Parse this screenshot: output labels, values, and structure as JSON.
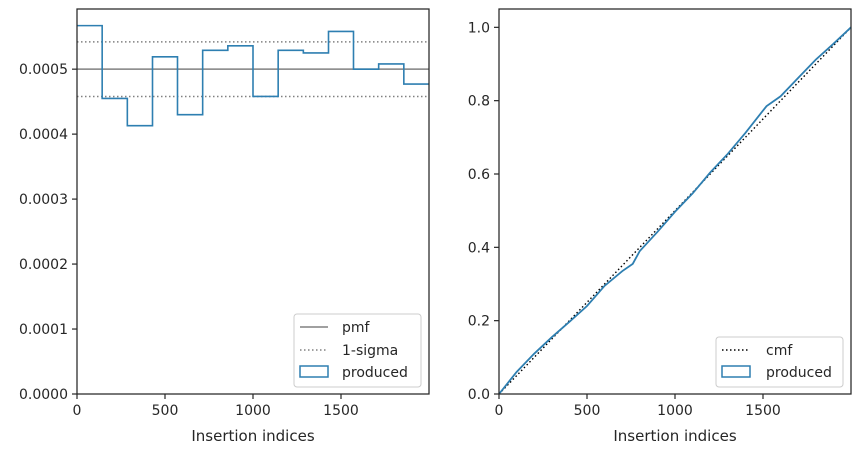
{
  "chart_data": [
    {
      "type": "histogram",
      "xlabel": "Insertion indices",
      "ylabel": "",
      "xlim": [
        0,
        2000
      ],
      "ylim": [
        0,
        0.0005926
      ],
      "xticks": [
        0,
        500,
        1000,
        1500
      ],
      "xtick_labels": [
        "0",
        "500",
        "1000",
        "1500"
      ],
      "yticks": [
        0,
        0.0001,
        0.0002,
        0.0003,
        0.0004,
        0.0005
      ],
      "ytick_labels": [
        "0.0000",
        "0.0001",
        "0.0002",
        "0.0003",
        "0.0004",
        "0.0005"
      ],
      "bin_edges": [
        0,
        143,
        286,
        429,
        571,
        714,
        857,
        1000,
        1143,
        1286,
        1429,
        1571,
        1714,
        1857,
        2000
      ],
      "series": [
        {
          "name": "produced",
          "style": "step",
          "color": "#2e7fb1",
          "values": [
            0.000567,
            0.000455,
            0.000413,
            0.000519,
            0.00043,
            0.000529,
            0.000536,
            0.000458,
            0.000529,
            0.000525,
            0.000558,
            0.0005,
            0.000508,
            0.000477
          ]
        }
      ],
      "reference_lines": [
        {
          "name": "pmf",
          "value": 0.0005,
          "style": "solid",
          "color": "#808080"
        },
        {
          "name": "1-sigma",
          "values": [
            0.000542,
            0.000458
          ],
          "style": "dotted",
          "color": "#808080"
        }
      ],
      "legend": {
        "placement": "lower right",
        "entries": [
          "pmf",
          "1-sigma",
          "produced"
        ]
      }
    },
    {
      "type": "line",
      "xlabel": "Insertion indices",
      "ylabel": "",
      "xlim": [
        0,
        2000
      ],
      "ylim": [
        0,
        1.05
      ],
      "xticks": [
        0,
        500,
        1000,
        1500
      ],
      "xtick_labels": [
        "0",
        "500",
        "1000",
        "1500"
      ],
      "yticks": [
        0,
        0.2,
        0.4,
        0.6,
        0.8,
        1.0
      ],
      "ytick_labels": [
        "0.0",
        "0.2",
        "0.4",
        "0.6",
        "0.8",
        "1.0"
      ],
      "series": [
        {
          "name": "cmf",
          "style": "dotted",
          "color": "#000000",
          "x": [
            0,
            2000
          ],
          "y": [
            0,
            1.0
          ]
        },
        {
          "name": "produced",
          "style": "solid",
          "color": "#2e7fb1",
          "x": [
            0,
            100,
            200,
            300,
            400,
            500,
            600,
            700,
            760,
            800,
            900,
            1000,
            1100,
            1200,
            1300,
            1400,
            1500,
            1520,
            1600,
            1700,
            1800,
            1900,
            2000
          ],
          "y": [
            0,
            0.06,
            0.11,
            0.155,
            0.197,
            0.24,
            0.295,
            0.335,
            0.355,
            0.39,
            0.442,
            0.497,
            0.547,
            0.604,
            0.655,
            0.712,
            0.773,
            0.785,
            0.812,
            0.862,
            0.912,
            0.955,
            1.0
          ]
        }
      ],
      "legend": {
        "placement": "lower right",
        "entries": [
          "cmf",
          "produced"
        ]
      }
    }
  ]
}
